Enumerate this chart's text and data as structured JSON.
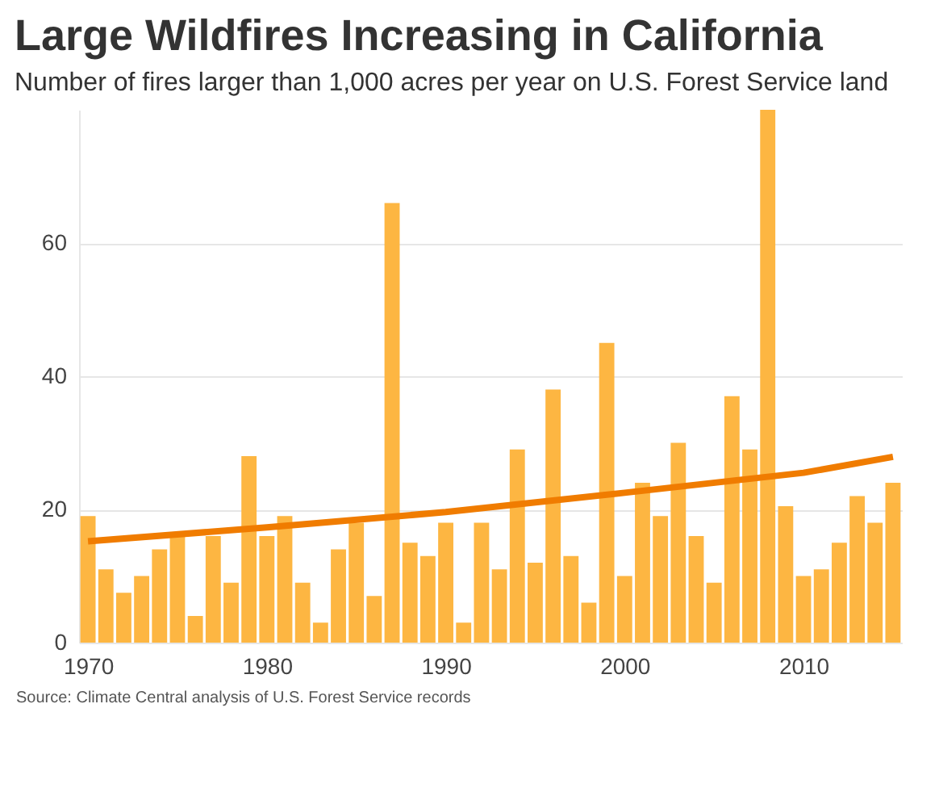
{
  "chart_data": {
    "type": "bar",
    "title": "Large Wildfires Increasing in California",
    "subtitle": "Number of fires larger than 1,000 acres per year on U.S. Forest Service land",
    "x": [
      1970,
      1971,
      1972,
      1973,
      1974,
      1975,
      1976,
      1977,
      1978,
      1979,
      1980,
      1981,
      1982,
      1983,
      1984,
      1985,
      1986,
      1987,
      1988,
      1989,
      1990,
      1991,
      1992,
      1993,
      1994,
      1995,
      1996,
      1997,
      1998,
      1999,
      2000,
      2001,
      2002,
      2003,
      2004,
      2005,
      2006,
      2007,
      2008,
      2009,
      2010,
      2011,
      2012,
      2013,
      2014,
      2015
    ],
    "series": [
      {
        "color": "#fdb642",
        "values": [
          19,
          11,
          7.5,
          10,
          14,
          16,
          4,
          16,
          9,
          28,
          16,
          19,
          9,
          3,
          14,
          18,
          7,
          66,
          15,
          13,
          18,
          3,
          18,
          11,
          29,
          12,
          38,
          13,
          6,
          45,
          10,
          24,
          19,
          30,
          16,
          9,
          37,
          29,
          80,
          20.5,
          10,
          11,
          15,
          22,
          18,
          24
        ]
      },
      {
        "type": "line",
        "color": "#f07c00",
        "x": [
          1970,
          1980,
          1990,
          2000,
          2010,
          2015
        ],
        "values": [
          15.2,
          17.3,
          19.6,
          22.5,
          25.5,
          27.9
        ]
      }
    ],
    "xlim": [
      1969.5,
      2015.5
    ],
    "xticks": [
      1970,
      1980,
      1990,
      2000,
      2010
    ],
    "ylim": [
      0,
      80
    ],
    "yticks": [
      0,
      20,
      40,
      60
    ],
    "grid": "y",
    "annotations": [
      "Source: Climate Central analysis of U.S. Forest Service records"
    ]
  }
}
